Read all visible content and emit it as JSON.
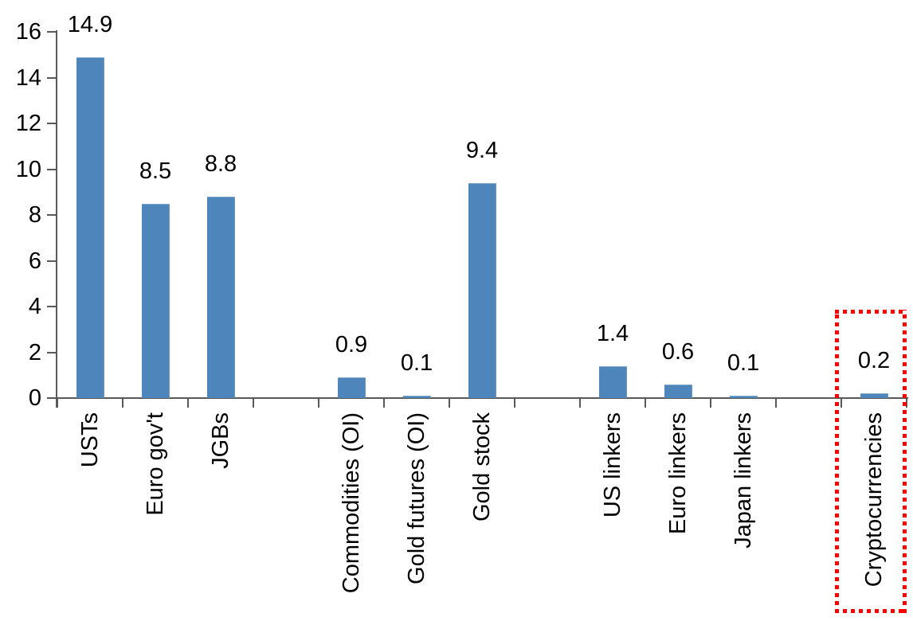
{
  "chart_data": {
    "type": "bar",
    "title": "",
    "categories": [
      "USTs",
      "Euro gov't",
      "JGBs",
      "",
      "Commodities (OI)",
      "Gold futures (OI)",
      "Gold stock",
      "",
      "US linkers",
      "Euro linkers",
      "Japan linkers",
      "",
      "Cryptocurrencies"
    ],
    "values": [
      14.9,
      8.5,
      8.8,
      null,
      0.9,
      0.1,
      9.4,
      null,
      1.4,
      0.6,
      0.1,
      null,
      0.2
    ],
    "data_labels": [
      "14.9",
      "8.5",
      "8.8",
      null,
      "0.9",
      "0.1",
      "9.4",
      null,
      "1.4",
      "0.6",
      "0.1",
      null,
      "0.2"
    ],
    "xlabel": "",
    "ylabel": "",
    "ylim": [
      0,
      16
    ],
    "yticks": [
      "0",
      "2",
      "4",
      "6",
      "8",
      "10",
      "12",
      "14",
      "16"
    ],
    "grid": false,
    "legend": null,
    "bar_color": "#4e86bb",
    "axis_color": "#595959",
    "text_color": "#000000",
    "highlight": {
      "category": "Cryptocurrencies",
      "shape": "dotted-rectangle",
      "color": "#ff0000"
    }
  }
}
